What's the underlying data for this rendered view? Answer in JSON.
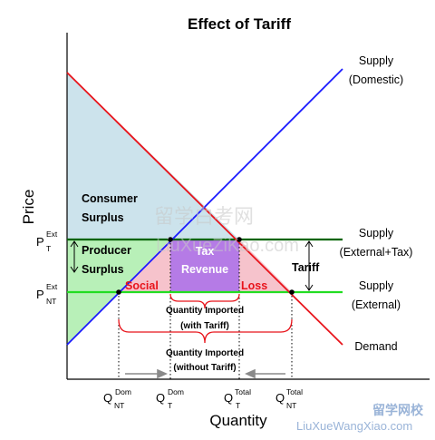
{
  "title": "Effect of Tariff",
  "axes": {
    "y_label": "Price",
    "x_label": "Quantity"
  },
  "curves": {
    "supply_domestic": {
      "line1": "Supply",
      "line2": "(Domestic)"
    },
    "supply_external_tax": {
      "line1": "Supply",
      "line2": "(External+Tax)"
    },
    "supply_external": {
      "line1": "Supply",
      "line2": "(External)"
    },
    "demand": {
      "label": "Demand"
    }
  },
  "regions": {
    "consumer_surplus": {
      "line1": "Consumer",
      "line2": "Surplus"
    },
    "producer_surplus": {
      "line1": "Producer",
      "line2": "Surplus"
    },
    "tax_revenue": {
      "line1": "Tax",
      "line2": "Revenue"
    },
    "social": "Social",
    "loss": "Loss",
    "tariff": "Tariff"
  },
  "annotations": {
    "qty_with_tariff": {
      "line1": "Quantity Imported",
      "line2": "(with Tariff)"
    },
    "qty_without_tariff": {
      "line1": "Quantity Imported",
      "line2": "(without Tariff)"
    }
  },
  "price_ticks": [
    {
      "base": "P",
      "sub": "T",
      "sup": "Ext"
    },
    {
      "base": "P",
      "sub": "NT",
      "sup": "Ext"
    }
  ],
  "quantity_ticks": [
    {
      "base": "Q",
      "sub": "NT",
      "sup": "Dom"
    },
    {
      "base": "Q",
      "sub": "T",
      "sup": "Dom"
    },
    {
      "base": "Q",
      "sub": "T",
      "sup": "Total"
    },
    {
      "base": "Q",
      "sub": "NT",
      "sup": "Total"
    }
  ],
  "watermark": {
    "chinese_center": "留学白考网",
    "latin_center": "LiuXueZiKao.com",
    "chinese_corner": "留学网校",
    "latin_corner": "LiuXueWangXiao.com"
  },
  "colors": {
    "supply_domestic": "#1a1aff",
    "demand": "#e8141b",
    "supply_external_tax": "#006400",
    "supply_external": "#22dd22",
    "consumer_surplus": "#cce3ec",
    "producer_surplus": "#b8f0b8",
    "tax_revenue": "#b57be6",
    "deadweight_loss": "#f6c3cc"
  }
}
